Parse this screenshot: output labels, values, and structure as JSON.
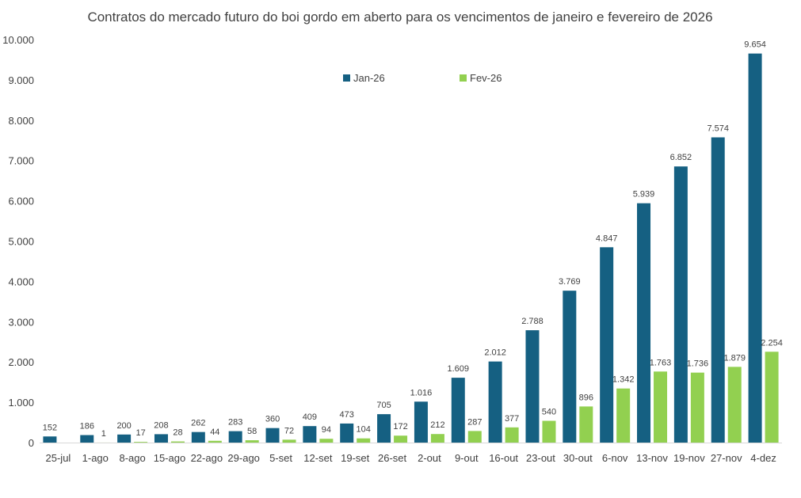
{
  "chart_data": {
    "type": "bar",
    "title": "Contratos do mercado futuro do boi gordo em aberto para os vencimentos de janeiro e fevereiro de 2026",
    "xlabel": "",
    "ylabel": "",
    "ylim": [
      0,
      10000
    ],
    "y_ticks": [
      "0",
      "1.000",
      "2.000",
      "3.000",
      "4.000",
      "5.000",
      "6.000",
      "7.000",
      "8.000",
      "9.000",
      "10.000"
    ],
    "legend_position": "top-center",
    "categories": [
      "25-jul",
      "1-ago",
      "8-ago",
      "15-ago",
      "22-ago",
      "29-ago",
      "5-set",
      "12-set",
      "19-set",
      "26-set",
      "2-out",
      "9-out",
      "16-out",
      "23-out",
      "30-out",
      "6-nov",
      "13-nov",
      "19-nov",
      "27-nov",
      "4-dez"
    ],
    "series": [
      {
        "name": "Jan-26",
        "color": "#156082",
        "values": [
          152,
          186,
          200,
          208,
          262,
          283,
          360,
          409,
          473,
          705,
          1016,
          1609,
          2012,
          2788,
          3769,
          4847,
          5939,
          6852,
          7574,
          9654
        ],
        "labels": [
          "152",
          "186",
          "200",
          "208",
          "262",
          "283",
          "360",
          "409",
          "473",
          "705",
          "1.016",
          "1.609",
          "2.012",
          "2.788",
          "3.769",
          "4.847",
          "5.939",
          "6.852",
          "7.574",
          "9.654"
        ]
      },
      {
        "name": "Fev-26",
        "color": "#92D050",
        "values": [
          null,
          1,
          17,
          28,
          44,
          58,
          72,
          94,
          104,
          172,
          212,
          287,
          377,
          540,
          896,
          1342,
          1763,
          1736,
          1879,
          2254
        ],
        "labels": [
          "",
          "1",
          "17",
          "28",
          "44",
          "58",
          "72",
          "94",
          "104",
          "172",
          "212",
          "287",
          "377",
          "540",
          "896",
          "1.342",
          "1.763",
          "1.736",
          "1.879",
          "2.254"
        ]
      }
    ]
  }
}
